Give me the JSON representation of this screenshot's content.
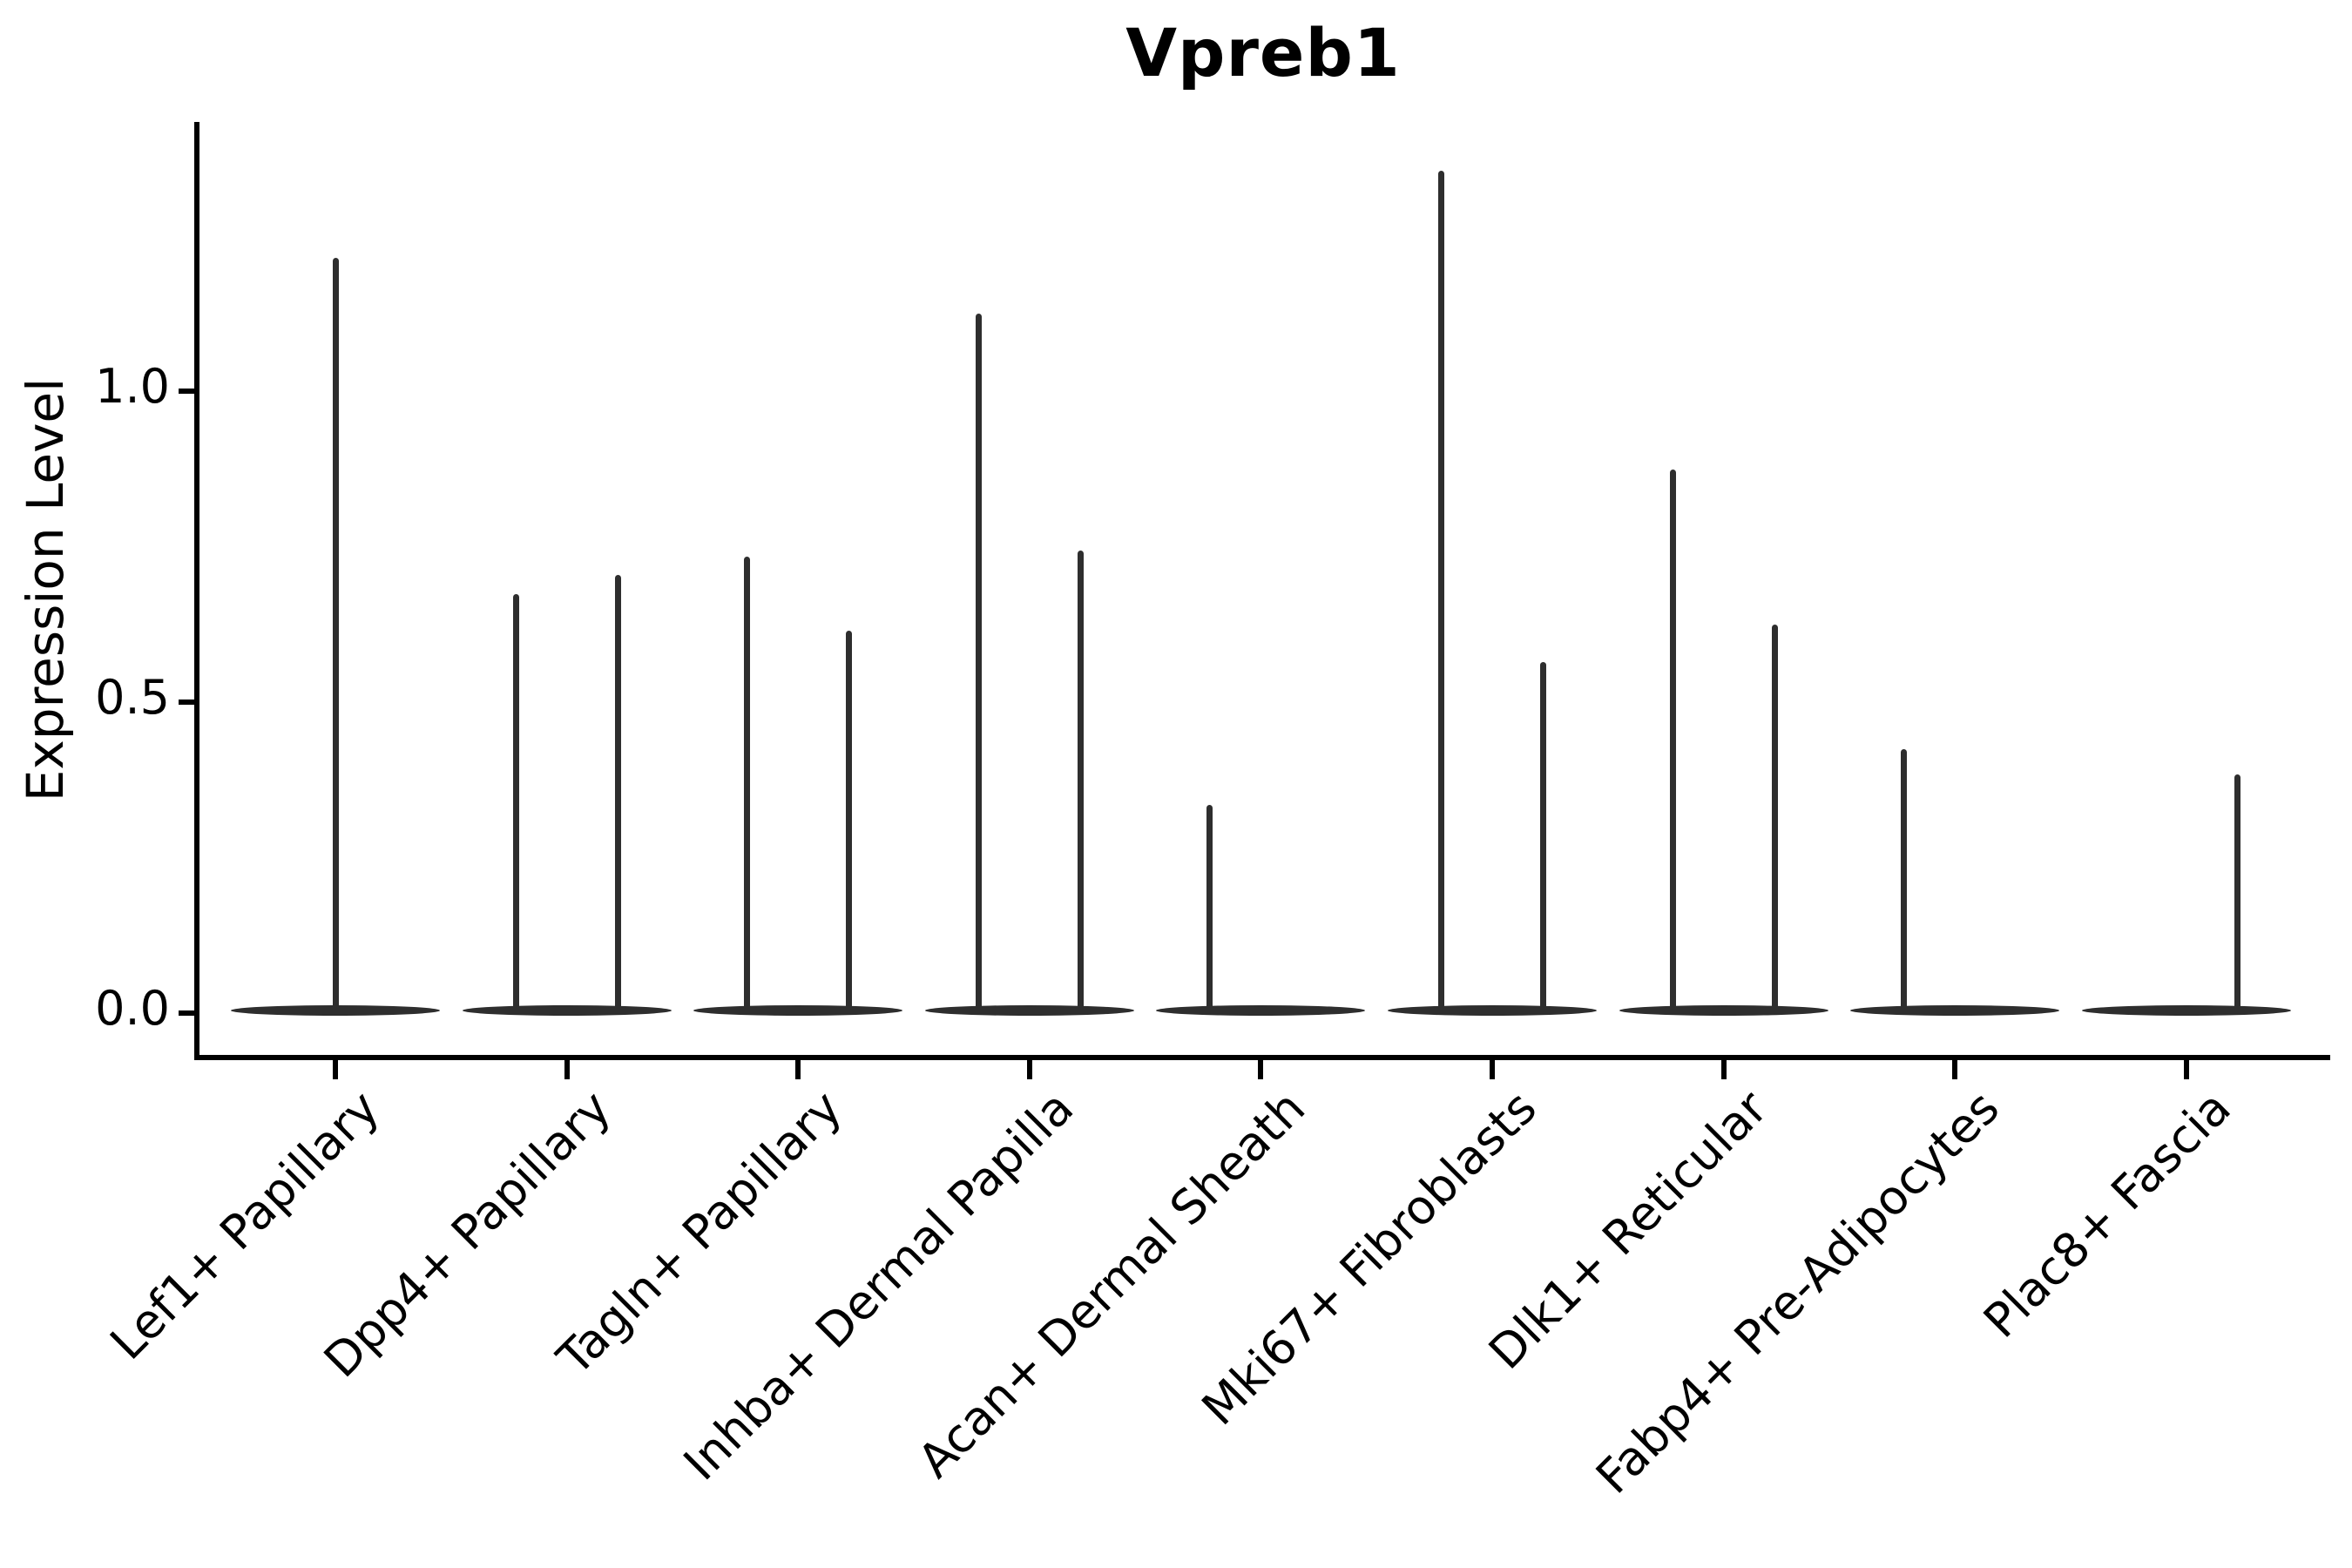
{
  "title": "Vpreb1",
  "ylabel": "Expression Level",
  "style": {
    "violin_color": "#2e2e2e",
    "spine_color": "#000000",
    "background": "#ffffff"
  },
  "chart_data": {
    "type": "violin",
    "title": "Vpreb1",
    "xlabel": "",
    "ylabel": "Expression Level",
    "ylim": [
      -0.07,
      1.43
    ],
    "yticks": [
      {
        "label": "0.0",
        "value": 0.0
      },
      {
        "label": "0.5",
        "value": 0.5
      },
      {
        "label": "1.0",
        "value": 1.0
      }
    ],
    "grid": false,
    "legend": false,
    "description": "Violin plot of Vpreb1 expression per fibroblast subtype; each violin is a flat band at 0 (most cells non-expressing) with thin vertical spikes marking the few expressing cells' maximum expression.",
    "categories": [
      {
        "name": "Lef1+ Papillary",
        "spikes": [
          {
            "pos": 0.0,
            "max": 1.21
          }
        ]
      },
      {
        "name": "Dpp4+ Papillary",
        "spikes": [
          {
            "pos": -0.22,
            "max": 0.67
          },
          {
            "pos": 0.22,
            "max": 0.7
          }
        ]
      },
      {
        "name": "Tagln+ Papillary",
        "spikes": [
          {
            "pos": -0.22,
            "max": 0.73
          },
          {
            "pos": 0.22,
            "max": 0.61
          }
        ]
      },
      {
        "name": "Inhba+ Dermal Papilla",
        "spikes": [
          {
            "pos": -0.22,
            "max": 1.12
          },
          {
            "pos": 0.22,
            "max": 0.74
          }
        ]
      },
      {
        "name": "Acan+ Dermal Sheath",
        "spikes": [
          {
            "pos": -0.22,
            "max": 0.33
          }
        ]
      },
      {
        "name": "Mki67+ Fibroblasts",
        "spikes": [
          {
            "pos": -0.22,
            "max": 1.35
          },
          {
            "pos": 0.22,
            "max": 0.56
          }
        ]
      },
      {
        "name": "Dlk1+ Reticular",
        "spikes": [
          {
            "pos": -0.22,
            "max": 0.87
          },
          {
            "pos": 0.22,
            "max": 0.62
          }
        ]
      },
      {
        "name": "Fabp4+ Pre-Adipocytes",
        "spikes": [
          {
            "pos": -0.22,
            "max": 0.42
          }
        ]
      },
      {
        "name": "Plac8+ Fascia",
        "spikes": [
          {
            "pos": 0.22,
            "max": 0.38
          }
        ]
      }
    ]
  }
}
